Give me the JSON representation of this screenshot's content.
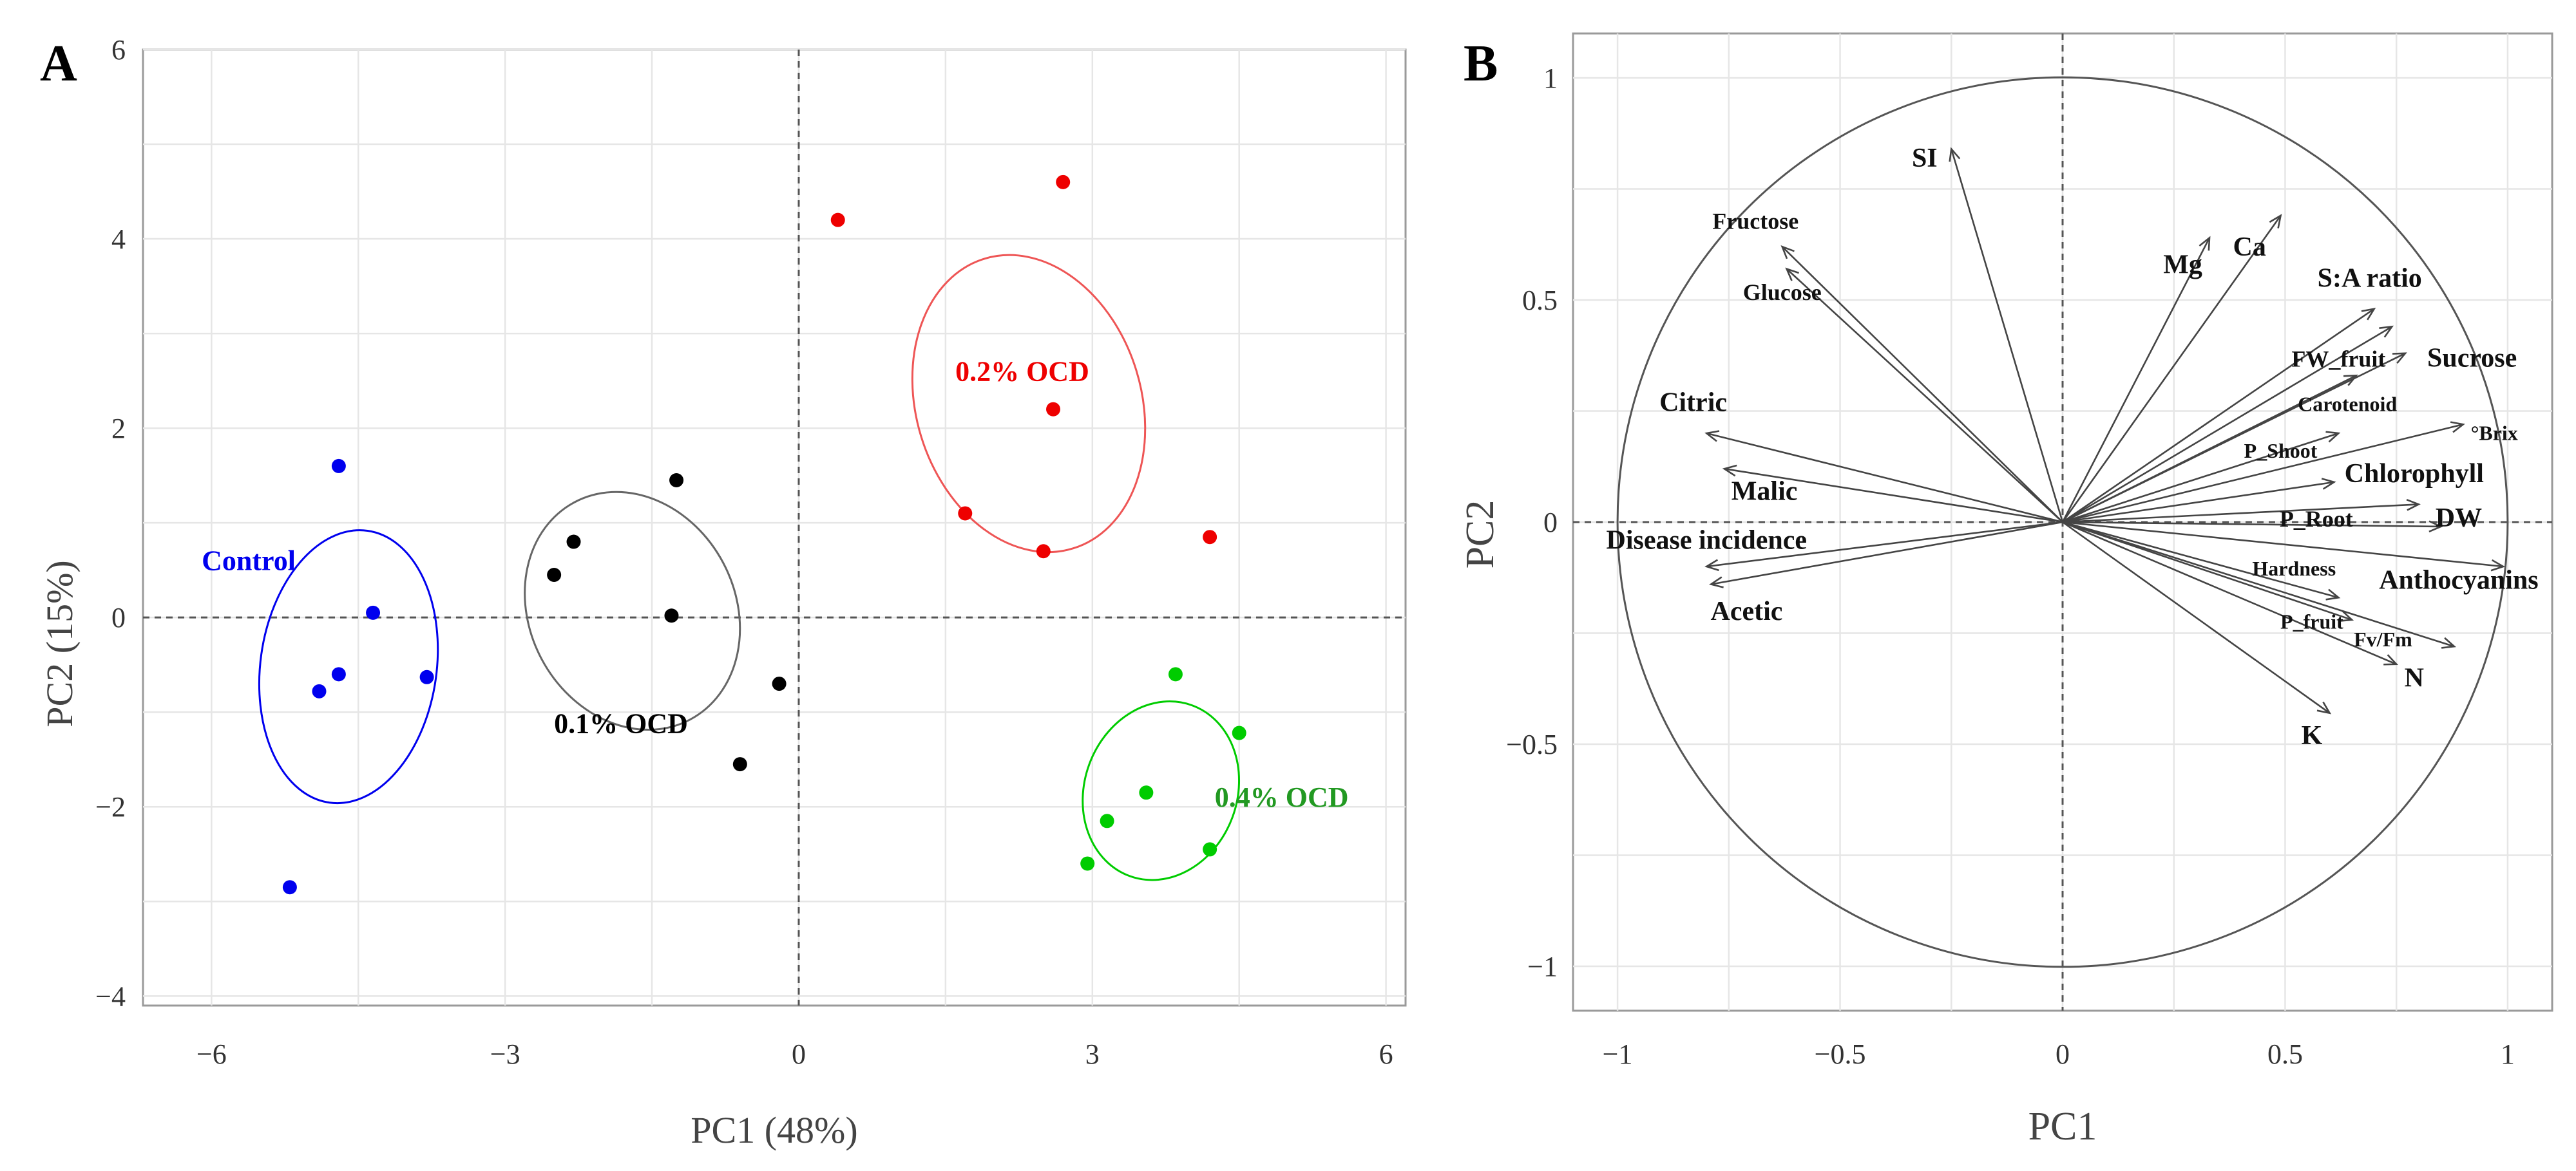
{
  "chart_data": [
    {
      "panel": "A",
      "type": "scatter",
      "xlabel": "PC1 (48%)",
      "ylabel": "PC2 (15%)",
      "xlim": [
        -6.7,
        6.2
      ],
      "ylim": [
        -4.1,
        6.0
      ],
      "xticks": [
        -6,
        -3,
        0,
        3,
        6
      ],
      "xtick_labels": [
        "−6",
        "−3",
        "0",
        "3",
        "6"
      ],
      "yticks": [
        -4,
        -2,
        0,
        2,
        4,
        6
      ],
      "ytick_labels": [
        "−4",
        "−2",
        "0",
        "2",
        "4",
        "6"
      ],
      "grid": true,
      "reference_lines": {
        "x": 0,
        "y": 0
      },
      "series": [
        {
          "name": "Control",
          "color": "#0000ee",
          "points": [
            [
              -4.7,
              1.6
            ],
            [
              -4.35,
              0.05
            ],
            [
              -4.7,
              -0.6
            ],
            [
              -3.8,
              -0.63
            ],
            [
              -4.9,
              -0.78
            ],
            [
              -5.2,
              -2.85
            ]
          ],
          "ellipse": {
            "center": [
              -4.6,
              -0.52
            ],
            "rx": 0.9,
            "ry": 1.45,
            "angle_deg": 8
          },
          "label": "Control",
          "label_pos": [
            -6.1,
            0.5
          ]
        },
        {
          "name": "0.1% OCD",
          "color": "#000000",
          "ellipse_color": "#666666",
          "points": [
            [
              -1.25,
              1.45
            ],
            [
              -2.3,
              0.8
            ],
            [
              -2.5,
              0.45
            ],
            [
              -1.3,
              0.02
            ],
            [
              -0.2,
              -0.7
            ],
            [
              -0.6,
              -1.55
            ]
          ],
          "ellipse": {
            "center": [
              -1.7,
              0.07
            ],
            "rx": 1.05,
            "ry": 1.3,
            "angle_deg": -28
          },
          "label": "0.1% OCD",
          "label_pos": [
            -2.5,
            -1.22
          ]
        },
        {
          "name": "0.2% OCD",
          "color": "#ee0000",
          "ellipse_color": "#ee5555",
          "points": [
            [
              0.4,
              4.2
            ],
            [
              2.7,
              4.6
            ],
            [
              2.6,
              2.2
            ],
            [
              1.7,
              1.1
            ],
            [
              2.5,
              0.7
            ],
            [
              4.2,
              0.85
            ]
          ],
          "ellipse": {
            "center": [
              2.35,
              2.26
            ],
            "rx": 1.15,
            "ry": 1.6,
            "angle_deg": -17
          },
          "label": "0.2% OCD",
          "label_pos": [
            1.6,
            2.5
          ]
        },
        {
          "name": "0.4% OCD",
          "color": "#00cc00",
          "label_color": "#229922",
          "points": [
            [
              3.85,
              -0.6
            ],
            [
              4.5,
              -1.22
            ],
            [
              3.55,
              -1.85
            ],
            [
              3.15,
              -2.15
            ],
            [
              4.2,
              -2.45
            ],
            [
              2.95,
              -2.6
            ]
          ],
          "ellipse": {
            "center": [
              3.7,
              -1.83
            ],
            "rx": 0.78,
            "ry": 0.96,
            "angle_deg": 20
          },
          "label": "0.4% OCD",
          "label_pos": [
            4.25,
            -2.0
          ]
        }
      ]
    },
    {
      "panel": "B",
      "type": "scatter",
      "subtype": "correlation-circle",
      "xlabel": "PC1",
      "ylabel": "PC2",
      "xlim": [
        -1.1,
        1.1
      ],
      "ylim": [
        -1.1,
        1.1
      ],
      "xticks": [
        -1,
        -0.5,
        0,
        0.5,
        1
      ],
      "xtick_labels": [
        "−1",
        "−0.5",
        "0",
        "0.5",
        "1"
      ],
      "yticks": [
        -1,
        -0.5,
        0,
        0.5,
        1
      ],
      "ytick_labels": [
        "−1",
        "−0.5",
        "0",
        "0.5",
        "1"
      ],
      "grid": true,
      "reference_lines": {
        "x": 0,
        "y": 0
      },
      "circle_radius": 1,
      "vectors": [
        {
          "name": "SI",
          "x": -0.25,
          "y": 0.84,
          "label_pos": [
            -0.31,
            0.8
          ],
          "size": "large"
        },
        {
          "name": "Fructose",
          "x": -0.63,
          "y": 0.62,
          "label_pos": [
            -0.69,
            0.66
          ],
          "size": "medium"
        },
        {
          "name": "Glucose",
          "x": -0.62,
          "y": 0.57,
          "label_pos": [
            -0.63,
            0.5
          ],
          "size": "medium"
        },
        {
          "name": "Mg",
          "x": 0.33,
          "y": 0.64,
          "label_pos": [
            0.27,
            0.56
          ],
          "size": "large"
        },
        {
          "name": "Ca",
          "x": 0.49,
          "y": 0.69,
          "label_pos": [
            0.42,
            0.6
          ],
          "size": "large"
        },
        {
          "name": "S:A ratio",
          "x": 0.7,
          "y": 0.48,
          "label_pos": [
            0.69,
            0.53
          ],
          "size": "large"
        },
        {
          "name": "FW_fruit",
          "x": 0.74,
          "y": 0.44,
          "label_pos": [
            0.62,
            0.35
          ],
          "size": "medium"
        },
        {
          "name": "Sucrose",
          "x": 0.77,
          "y": 0.38,
          "label_pos": [
            0.92,
            0.35
          ],
          "size": "large"
        },
        {
          "name": "Carotenoid",
          "x": 0.66,
          "y": 0.33,
          "label_pos": [
            0.64,
            0.25
          ],
          "size": "small"
        },
        {
          "name": "°Brix",
          "x": 0.9,
          "y": 0.22,
          "label_pos": [
            0.97,
            0.185
          ],
          "size": "small"
        },
        {
          "name": "P_Shoot",
          "x": 0.62,
          "y": 0.2,
          "label_pos": [
            0.49,
            0.145
          ],
          "size": "small"
        },
        {
          "name": "Chlorophyll",
          "x": 0.61,
          "y": 0.09,
          "label_pos": [
            0.79,
            0.09
          ],
          "size": "large"
        },
        {
          "name": "P_Root",
          "x": 0.8,
          "y": 0.04,
          "label_pos": [
            0.57,
            -0.01
          ],
          "size": "medium"
        },
        {
          "name": "DW",
          "x": 0.85,
          "y": -0.01,
          "label_pos": [
            0.89,
            -0.01
          ],
          "size": "large"
        },
        {
          "name": "Hardness",
          "x": 0.62,
          "y": -0.17,
          "label_pos": [
            0.52,
            -0.12
          ],
          "size": "small"
        },
        {
          "name": "Anthocyanins",
          "x": 0.99,
          "y": -0.1,
          "label_pos": [
            0.89,
            -0.15
          ],
          "size": "large"
        },
        {
          "name": "P_fruit",
          "x": 0.65,
          "y": -0.22,
          "label_pos": [
            0.56,
            -0.24
          ],
          "size": "small"
        },
        {
          "name": "Fv/Fm",
          "x": 0.75,
          "y": -0.32,
          "label_pos": [
            0.72,
            -0.28
          ],
          "size": "small"
        },
        {
          "name": "N",
          "x": 0.88,
          "y": -0.28,
          "label_pos": [
            0.79,
            -0.37
          ],
          "size": "large"
        },
        {
          "name": "K",
          "x": 0.6,
          "y": -0.43,
          "label_pos": [
            0.56,
            -0.5
          ],
          "size": "large"
        },
        {
          "name": "Citric",
          "x": -0.8,
          "y": 0.2,
          "label_pos": [
            -0.83,
            0.25
          ],
          "size": "large"
        },
        {
          "name": "Malic",
          "x": -0.76,
          "y": 0.12,
          "label_pos": [
            -0.67,
            0.05
          ],
          "size": "large"
        },
        {
          "name": "Disease incidence",
          "x": -0.8,
          "y": -0.1,
          "label_pos": [
            -0.8,
            -0.06
          ],
          "size": "large"
        },
        {
          "name": "Acetic",
          "x": -0.79,
          "y": -0.14,
          "label_pos": [
            -0.71,
            -0.22
          ],
          "size": "large"
        }
      ]
    }
  ],
  "panel_letters": [
    "A",
    "B"
  ]
}
